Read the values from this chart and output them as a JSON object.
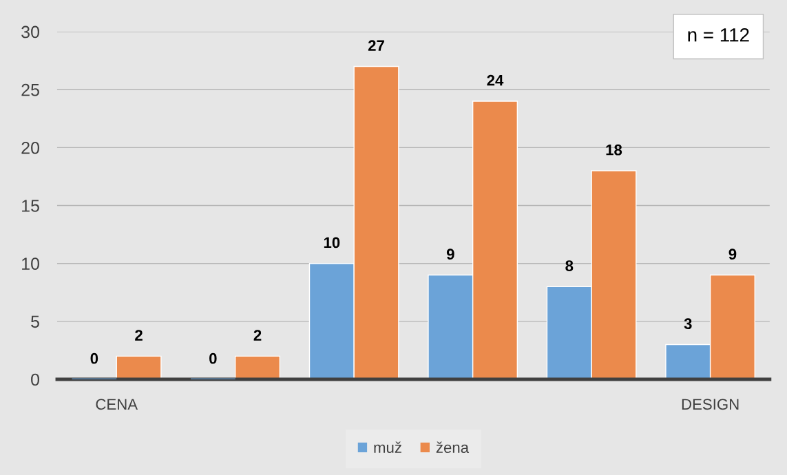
{
  "chart_data": {
    "type": "bar",
    "categories": [
      "CENA",
      null,
      null,
      null,
      null,
      "DESIGN"
    ],
    "series": [
      {
        "name": "muž",
        "color": "#6ba3d8",
        "values": [
          0,
          0,
          10,
          9,
          8,
          3
        ]
      },
      {
        "name": "žena",
        "color": "#eb8a4c",
        "values": [
          2,
          2,
          27,
          24,
          18,
          9
        ]
      }
    ],
    "ylim": [
      0,
      30
    ],
    "yticks": [
      0,
      5,
      10,
      15,
      20,
      25,
      30
    ],
    "grid": "y",
    "legend": "bottom",
    "data_labels": true,
    "annotations": [
      "n = 112"
    ]
  }
}
